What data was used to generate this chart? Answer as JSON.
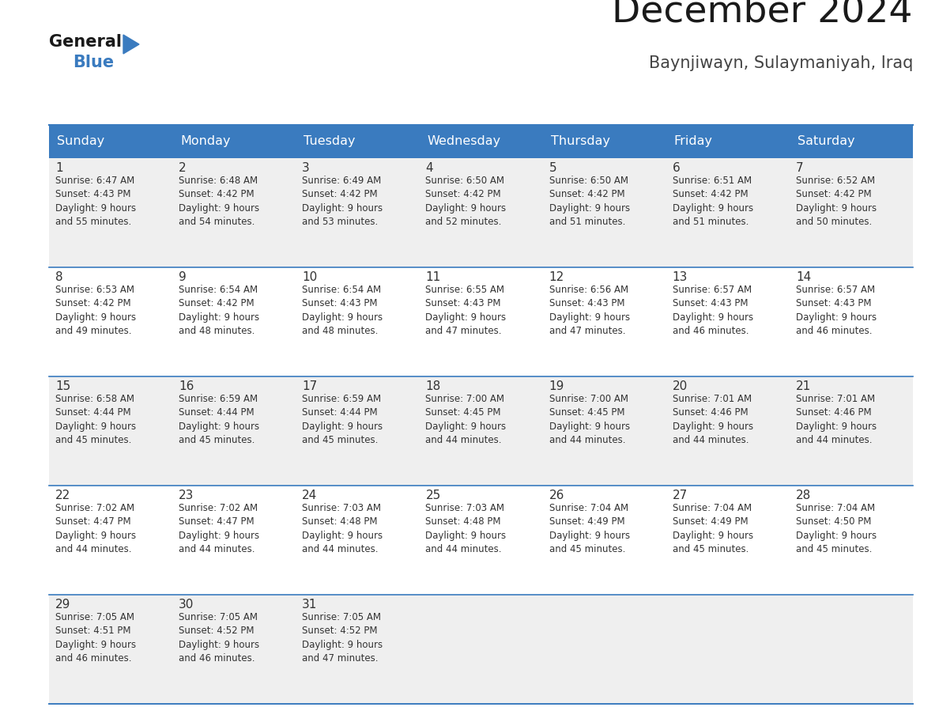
{
  "title": "December 2024",
  "subtitle": "Baynjiwayn, Sulaymaniyah, Iraq",
  "header_bg": "#3a7bbf",
  "header_text": "#ffffff",
  "day_names": [
    "Sunday",
    "Monday",
    "Tuesday",
    "Wednesday",
    "Thursday",
    "Friday",
    "Saturday"
  ],
  "row_bg_odd": "#efefef",
  "row_bg_even": "#ffffff",
  "separator_color": "#3a7bbf",
  "text_color": "#333333",
  "days": [
    {
      "day": 1,
      "col": 0,
      "row": 0,
      "sunrise": "6:47 AM",
      "sunset": "4:43 PM",
      "daylight": "9 hours",
      "daylight2": "and 55 minutes."
    },
    {
      "day": 2,
      "col": 1,
      "row": 0,
      "sunrise": "6:48 AM",
      "sunset": "4:42 PM",
      "daylight": "9 hours",
      "daylight2": "and 54 minutes."
    },
    {
      "day": 3,
      "col": 2,
      "row": 0,
      "sunrise": "6:49 AM",
      "sunset": "4:42 PM",
      "daylight": "9 hours",
      "daylight2": "and 53 minutes."
    },
    {
      "day": 4,
      "col": 3,
      "row": 0,
      "sunrise": "6:50 AM",
      "sunset": "4:42 PM",
      "daylight": "9 hours",
      "daylight2": "and 52 minutes."
    },
    {
      "day": 5,
      "col": 4,
      "row": 0,
      "sunrise": "6:50 AM",
      "sunset": "4:42 PM",
      "daylight": "9 hours",
      "daylight2": "and 51 minutes."
    },
    {
      "day": 6,
      "col": 5,
      "row": 0,
      "sunrise": "6:51 AM",
      "sunset": "4:42 PM",
      "daylight": "9 hours",
      "daylight2": "and 51 minutes."
    },
    {
      "day": 7,
      "col": 6,
      "row": 0,
      "sunrise": "6:52 AM",
      "sunset": "4:42 PM",
      "daylight": "9 hours",
      "daylight2": "and 50 minutes."
    },
    {
      "day": 8,
      "col": 0,
      "row": 1,
      "sunrise": "6:53 AM",
      "sunset": "4:42 PM",
      "daylight": "9 hours",
      "daylight2": "and 49 minutes."
    },
    {
      "day": 9,
      "col": 1,
      "row": 1,
      "sunrise": "6:54 AM",
      "sunset": "4:42 PM",
      "daylight": "9 hours",
      "daylight2": "and 48 minutes."
    },
    {
      "day": 10,
      "col": 2,
      "row": 1,
      "sunrise": "6:54 AM",
      "sunset": "4:43 PM",
      "daylight": "9 hours",
      "daylight2": "and 48 minutes."
    },
    {
      "day": 11,
      "col": 3,
      "row": 1,
      "sunrise": "6:55 AM",
      "sunset": "4:43 PM",
      "daylight": "9 hours",
      "daylight2": "and 47 minutes."
    },
    {
      "day": 12,
      "col": 4,
      "row": 1,
      "sunrise": "6:56 AM",
      "sunset": "4:43 PM",
      "daylight": "9 hours",
      "daylight2": "and 47 minutes."
    },
    {
      "day": 13,
      "col": 5,
      "row": 1,
      "sunrise": "6:57 AM",
      "sunset": "4:43 PM",
      "daylight": "9 hours",
      "daylight2": "and 46 minutes."
    },
    {
      "day": 14,
      "col": 6,
      "row": 1,
      "sunrise": "6:57 AM",
      "sunset": "4:43 PM",
      "daylight": "9 hours",
      "daylight2": "and 46 minutes."
    },
    {
      "day": 15,
      "col": 0,
      "row": 2,
      "sunrise": "6:58 AM",
      "sunset": "4:44 PM",
      "daylight": "9 hours",
      "daylight2": "and 45 minutes."
    },
    {
      "day": 16,
      "col": 1,
      "row": 2,
      "sunrise": "6:59 AM",
      "sunset": "4:44 PM",
      "daylight": "9 hours",
      "daylight2": "and 45 minutes."
    },
    {
      "day": 17,
      "col": 2,
      "row": 2,
      "sunrise": "6:59 AM",
      "sunset": "4:44 PM",
      "daylight": "9 hours",
      "daylight2": "and 45 minutes."
    },
    {
      "day": 18,
      "col": 3,
      "row": 2,
      "sunrise": "7:00 AM",
      "sunset": "4:45 PM",
      "daylight": "9 hours",
      "daylight2": "and 44 minutes."
    },
    {
      "day": 19,
      "col": 4,
      "row": 2,
      "sunrise": "7:00 AM",
      "sunset": "4:45 PM",
      "daylight": "9 hours",
      "daylight2": "and 44 minutes."
    },
    {
      "day": 20,
      "col": 5,
      "row": 2,
      "sunrise": "7:01 AM",
      "sunset": "4:46 PM",
      "daylight": "9 hours",
      "daylight2": "and 44 minutes."
    },
    {
      "day": 21,
      "col": 6,
      "row": 2,
      "sunrise": "7:01 AM",
      "sunset": "4:46 PM",
      "daylight": "9 hours",
      "daylight2": "and 44 minutes."
    },
    {
      "day": 22,
      "col": 0,
      "row": 3,
      "sunrise": "7:02 AM",
      "sunset": "4:47 PM",
      "daylight": "9 hours",
      "daylight2": "and 44 minutes."
    },
    {
      "day": 23,
      "col": 1,
      "row": 3,
      "sunrise": "7:02 AM",
      "sunset": "4:47 PM",
      "daylight": "9 hours",
      "daylight2": "and 44 minutes."
    },
    {
      "day": 24,
      "col": 2,
      "row": 3,
      "sunrise": "7:03 AM",
      "sunset": "4:48 PM",
      "daylight": "9 hours",
      "daylight2": "and 44 minutes."
    },
    {
      "day": 25,
      "col": 3,
      "row": 3,
      "sunrise": "7:03 AM",
      "sunset": "4:48 PM",
      "daylight": "9 hours",
      "daylight2": "and 44 minutes."
    },
    {
      "day": 26,
      "col": 4,
      "row": 3,
      "sunrise": "7:04 AM",
      "sunset": "4:49 PM",
      "daylight": "9 hours",
      "daylight2": "and 45 minutes."
    },
    {
      "day": 27,
      "col": 5,
      "row": 3,
      "sunrise": "7:04 AM",
      "sunset": "4:49 PM",
      "daylight": "9 hours",
      "daylight2": "and 45 minutes."
    },
    {
      "day": 28,
      "col": 6,
      "row": 3,
      "sunrise": "7:04 AM",
      "sunset": "4:50 PM",
      "daylight": "9 hours",
      "daylight2": "and 45 minutes."
    },
    {
      "day": 29,
      "col": 0,
      "row": 4,
      "sunrise": "7:05 AM",
      "sunset": "4:51 PM",
      "daylight": "9 hours",
      "daylight2": "and 46 minutes."
    },
    {
      "day": 30,
      "col": 1,
      "row": 4,
      "sunrise": "7:05 AM",
      "sunset": "4:52 PM",
      "daylight": "9 hours",
      "daylight2": "and 46 minutes."
    },
    {
      "day": 31,
      "col": 2,
      "row": 4,
      "sunrise": "7:05 AM",
      "sunset": "4:52 PM",
      "daylight": "9 hours",
      "daylight2": "and 47 minutes."
    }
  ]
}
